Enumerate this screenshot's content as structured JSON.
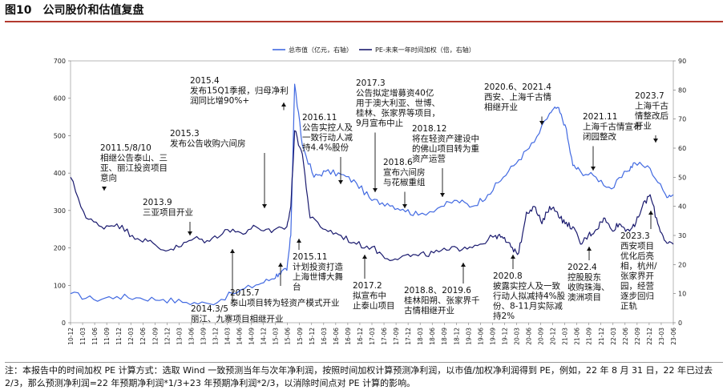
{
  "figure": {
    "label": "图10",
    "title": "公司股价和估值复盘",
    "note": "注：本报告中的时间加权 PE 计算方式：选取 Wind 一致预测当年与次年净利润，按照时间加权计算预测净利润，以市值/加权净利润得到 PE，例如，22 年 8 月 31 日，22 年已过去 2/3，那么预测净利润=22 年预期净利润*1/3+23 年预期净利润*2/3，以消除时间点对 PE 计算的影响。"
  },
  "chart_data": {
    "type": "line",
    "title": "公司股价和估值复盘",
    "series": [
      {
        "name": "总市值（亿元，右轴）",
        "color": "#4169e1",
        "axis": "right",
        "x": [
          0,
          6,
          12,
          18,
          24,
          30,
          36,
          42,
          48,
          52,
          54,
          56,
          57,
          58,
          60,
          63,
          66,
          70,
          74,
          78,
          82,
          86,
          90,
          96,
          100,
          104,
          108,
          112,
          116,
          120,
          124,
          126,
          128,
          130,
          132,
          136,
          140,
          144,
          146,
          150,
          154,
          156
        ],
        "values": [
          10.0,
          8.0,
          9.0,
          8.5,
          8.0,
          7.0,
          6.5,
          10.0,
          13.0,
          15.0,
          17.0,
          18.0,
          30.0,
          82.0,
          61.0,
          50.0,
          52.0,
          51.0,
          48.0,
          42.0,
          41.0,
          39.0,
          37.0,
          40.0,
          42.0,
          40.0,
          44.0,
          50.0,
          56.0,
          62.0,
          72.0,
          74.0,
          68.0,
          54.0,
          52.0,
          50.0,
          46.0,
          52.0,
          55.0,
          53.0,
          44.0,
          44.0
        ]
      },
      {
        "name": "PE-未来一年时间加权（倍，右轴）",
        "color": "#1a1a6e",
        "axis": "right",
        "x": [
          0,
          4,
          8,
          12,
          16,
          20,
          24,
          28,
          32,
          36,
          40,
          44,
          48,
          52,
          56,
          57,
          58,
          60,
          62,
          66,
          70,
          74,
          78,
          82,
          86,
          90,
          94,
          98,
          102,
          106,
          110,
          112,
          114,
          116,
          118,
          120,
          122,
          124,
          126,
          128,
          130,
          132,
          134,
          136,
          138,
          140,
          142,
          144,
          146,
          148,
          150,
          152,
          154,
          156
        ],
        "values": [
          50.0,
          36.0,
          33.0,
          34.0,
          30.0,
          28.0,
          25.0,
          26.0,
          29.0,
          28.0,
          32.0,
          31.0,
          33.0,
          31.0,
          33.0,
          40.0,
          66.0,
          58.0,
          36.0,
          32.0,
          30.0,
          27.0,
          26.0,
          22.0,
          23.0,
          23.0,
          24.0,
          25.0,
          26.0,
          27.0,
          30.0,
          29.0,
          26.0,
          24.0,
          38.0,
          40.0,
          34.0,
          40.0,
          38.0,
          34.0,
          33.0,
          27.0,
          30.0,
          32.0,
          36.0,
          32.0,
          34.0,
          32.0,
          33.0,
          40.0,
          44.0,
          34.0,
          28.0,
          27.0
        ]
      }
    ],
    "x_ticks": [
      "10-12",
      "11-03",
      "11-06",
      "11-09",
      "11-12",
      "12-03",
      "12-06",
      "12-09",
      "12-12",
      "13-03",
      "13-06",
      "13-09",
      "13-12",
      "14-03",
      "14-06",
      "14-09",
      "14-12",
      "15-03",
      "15-06",
      "15-09",
      "15-12",
      "16-03",
      "16-06",
      "16-09",
      "16-12",
      "17-03",
      "17-06",
      "17-09",
      "17-12",
      "18-03",
      "18-06",
      "18-09",
      "18-12",
      "19-03",
      "19-06",
      "19-09",
      "19-12",
      "20-03",
      "20-06",
      "20-09",
      "20-12",
      "21-03",
      "21-06",
      "21-09",
      "21-12",
      "22-03",
      "22-06",
      "22-09",
      "22-12",
      "23-03",
      "23-06"
    ],
    "left_axis": {
      "ylim": [
        0,
        700
      ],
      "ticks": [
        "0",
        "100",
        "200",
        "300",
        "400",
        "500",
        "600",
        "700"
      ]
    },
    "right_axis": {
      "ylim": [
        0,
        90
      ],
      "ticks": [
        "0",
        "10",
        "20",
        "30",
        "40",
        "50",
        "60",
        "70",
        "80",
        "90"
      ]
    },
    "legend_position": "top-center",
    "annotations": [
      {
        "id": "a2011",
        "date": "2011.5/8/10",
        "lines": [
          "相继公告泰山、三",
          "亚、丽江投资项目",
          "意向"
        ]
      },
      {
        "id": "a2013",
        "date": "2013.9",
        "lines": [
          "三亚项目开业"
        ]
      },
      {
        "id": "a2014",
        "date": "2014.3/5",
        "lines": [
          "丽江、九寨项目相继开业"
        ]
      },
      {
        "id": "a2015_3",
        "date": "2015.3",
        "lines": [
          "发布公告收购六间房"
        ]
      },
      {
        "id": "a2015_4",
        "date": "2015.4",
        "lines": [
          "发布15Q1季报，归母净利",
          "润同比增90%+"
        ]
      },
      {
        "id": "a2015_7",
        "date": "2015.7",
        "lines": [
          "泰山项目转为轻资产模式开业"
        ]
      },
      {
        "id": "a2015_11",
        "date": "2015.11",
        "lines": [
          "计划投资打造",
          "上海世博大舞",
          "台"
        ]
      },
      {
        "id": "a2016_11",
        "date": "2016.11",
        "lines": [
          "公告实控人及",
          "一致行动人减",
          "持4.4%股份"
        ]
      },
      {
        "id": "a2017_3",
        "date": "2017.3",
        "lines": [
          "公告拟定增募资40亿",
          "用于澳大利亚、世博、",
          "桂林、张家界等项目，",
          "9月宣布中止"
        ]
      },
      {
        "id": "a2017_2",
        "date": "2017.2",
        "lines": [
          "拟宣布中",
          "止泰山项目"
        ]
      },
      {
        "id": "a2018_6",
        "date": "2018.6",
        "lines": [
          "宣布六间房",
          "与花椒重组"
        ]
      },
      {
        "id": "a2018_12",
        "date": "2018.12",
        "lines": [
          "将在轻资产建设中",
          "的佛山项目转为重",
          "资产运营"
        ]
      },
      {
        "id": "a2018_8",
        "date": "2018.8、2019.6",
        "lines": [
          "桂林阳朔、张家界千",
          "古情相继开业"
        ]
      },
      {
        "id": "a2020_6",
        "date": "2020.6、2021.4",
        "lines": [
          "西安、上海千古情",
          "相继开业"
        ]
      },
      {
        "id": "a2020_8",
        "date": "2020.8",
        "lines": [
          "披露实控人及一致",
          "行动人拟减持4%股",
          "份、8-11月实际减",
          "持2%"
        ]
      },
      {
        "id": "a2021_11",
        "date": "2021.11",
        "lines": [
          "上海千古情宣布",
          "闭园整改"
        ]
      },
      {
        "id": "a2022_4",
        "date": "2022.4",
        "lines": [
          "控股股东",
          "收购珠海、",
          "澳洲项目"
        ]
      },
      {
        "id": "a2023_3",
        "date": "2023.3",
        "lines": [
          "西安项目",
          "优化后亮",
          "相，杭州/",
          "张家界开",
          "园，经营",
          "逐步回归",
          "正轨"
        ]
      },
      {
        "id": "a2023_7",
        "date": "2023.7",
        "lines": [
          "上海千古",
          "情整改后",
          "开业"
        ]
      }
    ]
  }
}
